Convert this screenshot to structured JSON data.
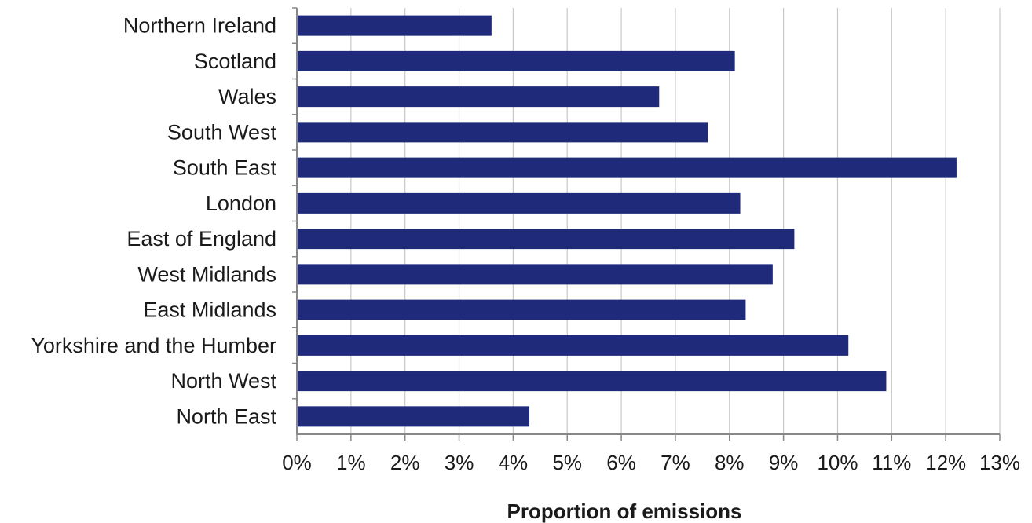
{
  "chart_data": {
    "type": "bar",
    "orientation": "horizontal",
    "title": "",
    "xlabel": "Proportion of emissions",
    "ylabel": "",
    "xlim": [
      0,
      13
    ],
    "x_unit": "%",
    "grid": "vertical gridlines",
    "bar_color": "#1f2a7a",
    "grid_color": "#c8c8c8",
    "axis_color": "#888888",
    "x_ticks": [
      "0%",
      "1%",
      "2%",
      "3%",
      "4%",
      "5%",
      "6%",
      "7%",
      "8%",
      "9%",
      "10%",
      "11%",
      "12%",
      "13%"
    ],
    "categories": [
      "Northern Ireland",
      "Scotland",
      "Wales",
      "South West",
      "South East",
      "London",
      "East of England",
      "West Midlands",
      "East Midlands",
      "Yorkshire and the Humber",
      "North West",
      "North East"
    ],
    "values": [
      3.6,
      8.1,
      6.7,
      7.6,
      12.2,
      8.2,
      9.2,
      8.8,
      8.3,
      10.2,
      10.9,
      4.3
    ]
  }
}
